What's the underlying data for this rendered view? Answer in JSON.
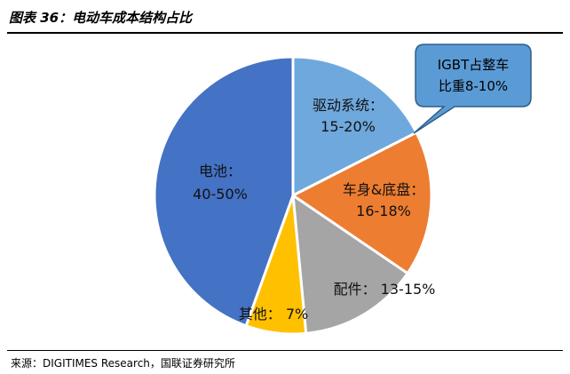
{
  "header": {
    "title": "图表 36：电动车成本结构占比"
  },
  "footer": {
    "source": "来源：DIGITIMES Research，国联证券研究所"
  },
  "chart_data": {
    "type": "pie",
    "title": "",
    "slices": [
      {
        "label_line1": "驱动系统：",
        "label_line2": "15-20%",
        "value": 17.5,
        "color": "#6FA8DC"
      },
      {
        "label_line1": "车身&底盘：",
        "label_line2": "16-18%",
        "value": 17.0,
        "color": "#ED7D31"
      },
      {
        "label_line1": "配件：",
        "label_line2": "13-15%",
        "value": 14.0,
        "color": "#A5A5A5"
      },
      {
        "label_line1": "其他：",
        "label_line2": "7%",
        "value": 7.0,
        "color": "#FFC000"
      },
      {
        "label_line1": "电池：",
        "label_line2": "40-50%",
        "value": 44.5,
        "color": "#4472C4"
      }
    ],
    "callout": {
      "line1": "IGBT占整车",
      "line2": "比重8-10%",
      "color": "#5B9BD5"
    }
  }
}
